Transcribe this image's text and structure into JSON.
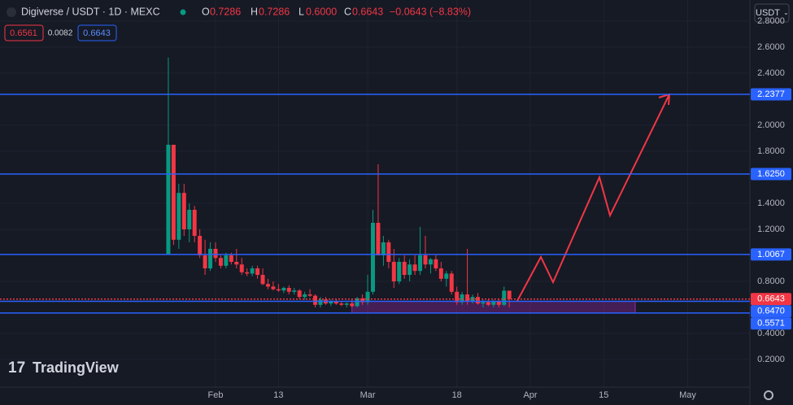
{
  "header": {
    "title": "Digiverse / USDT · 1D · MEXC",
    "o_label": "O",
    "open": "0.7286",
    "h_label": "H",
    "high": "0.7286",
    "l_label": "L",
    "low": "0.6000",
    "c_label": "C",
    "close": "0.6643",
    "change": "−0.0643 (−8.83%)",
    "sell": "0.6561",
    "spread": "0.0082",
    "buy": "0.6643",
    "currency": "USDT",
    "logo": "TradingView"
  },
  "chart_data": {
    "type": "candlestick",
    "up_color": "#089981",
    "down_color": "#f23645",
    "grid": true,
    "x": [
      "Jan 23",
      "Jan 24",
      "Jan 25",
      "Jan 26",
      "Jan 27",
      "Jan 28",
      "Jan 29",
      "Jan 30",
      "Jan 31",
      "Feb 1",
      "Feb 2",
      "Feb 3",
      "Feb 4",
      "Feb 5",
      "Feb 6",
      "Feb 7",
      "Feb 8",
      "Feb 9",
      "Feb 10",
      "Feb 11",
      "Feb 12",
      "Feb 13",
      "Feb 14",
      "Feb 15",
      "Feb 16",
      "Feb 17",
      "Feb 18",
      "Feb 19",
      "Feb 20",
      "Feb 21",
      "Feb 22",
      "Feb 23",
      "Feb 24",
      "Feb 25",
      "Feb 26",
      "Feb 27",
      "Feb 28",
      "Feb 29",
      "Mar 1",
      "Mar 2",
      "Mar 3",
      "Mar 4",
      "Mar 5",
      "Mar 6",
      "Mar 7",
      "Mar 8",
      "Mar 9",
      "Mar 10",
      "Mar 11",
      "Mar 12",
      "Mar 13",
      "Mar 14",
      "Mar 15",
      "Mar 16",
      "Mar 17",
      "Mar 18",
      "Mar 19",
      "Mar 20",
      "Mar 21",
      "Mar 22",
      "Mar 23",
      "Mar 24",
      "Mar 25",
      "Mar 26",
      "Mar 27",
      "Mar 28"
    ],
    "open": [
      1.01,
      1.85,
      1.12,
      1.48,
      1.2,
      1.35,
      1.15,
      1.0,
      0.9,
      1.05,
      0.98,
      0.92,
      1.0,
      0.95,
      0.93,
      0.87,
      0.86,
      0.9,
      0.85,
      0.78,
      0.76,
      0.74,
      0.73,
      0.75,
      0.72,
      0.73,
      0.68,
      0.7,
      0.69,
      0.62,
      0.66,
      0.63,
      0.65,
      0.63,
      0.62,
      0.63,
      0.61,
      0.67,
      0.64,
      0.72,
      1.25,
      1.0,
      1.1,
      0.95,
      0.8,
      0.95,
      0.85,
      0.93,
      0.88,
      1.0,
      0.93,
      0.97,
      0.9,
      0.82,
      0.86,
      0.72,
      0.64,
      0.7,
      0.65,
      0.68,
      0.63,
      0.64,
      0.62,
      0.65,
      0.62,
      0.7286
    ],
    "high": [
      2.52,
      1.85,
      1.55,
      1.55,
      1.4,
      1.38,
      1.2,
      1.12,
      1.1,
      1.1,
      1.0,
      1.02,
      1.02,
      1.05,
      0.98,
      0.9,
      0.92,
      0.92,
      0.9,
      0.82,
      0.8,
      0.78,
      0.76,
      0.77,
      0.75,
      0.74,
      0.72,
      0.74,
      0.7,
      0.68,
      0.68,
      0.66,
      0.66,
      0.65,
      0.64,
      0.66,
      0.68,
      0.7,
      0.85,
      1.35,
      1.7,
      1.15,
      1.12,
      1.05,
      0.98,
      1.0,
      0.97,
      1.0,
      1.22,
      1.15,
      0.98,
      1.0,
      0.95,
      0.88,
      0.88,
      0.76,
      0.72,
      1.05,
      0.7,
      0.71,
      0.66,
      0.66,
      0.66,
      0.67,
      0.76,
      0.7286
    ],
    "low": [
      1.01,
      1.08,
      1.05,
      1.15,
      1.1,
      1.1,
      0.98,
      0.85,
      0.88,
      0.95,
      0.9,
      0.9,
      0.93,
      0.9,
      0.85,
      0.84,
      0.84,
      0.82,
      0.77,
      0.74,
      0.73,
      0.72,
      0.71,
      0.7,
      0.7,
      0.66,
      0.66,
      0.68,
      0.6,
      0.6,
      0.62,
      0.61,
      0.62,
      0.61,
      0.6,
      0.6,
      0.6,
      0.62,
      0.62,
      0.7,
      1.0,
      0.92,
      0.9,
      0.75,
      0.78,
      0.82,
      0.8,
      0.85,
      0.85,
      0.9,
      0.86,
      0.88,
      0.8,
      0.76,
      0.7,
      0.62,
      0.62,
      0.62,
      0.63,
      0.62,
      0.6,
      0.61,
      0.6,
      0.6,
      0.61,
      0.6
    ],
    "close": [
      1.85,
      1.12,
      1.48,
      1.2,
      1.35,
      1.15,
      1.0,
      0.9,
      1.05,
      0.98,
      0.92,
      1.0,
      0.95,
      0.93,
      0.87,
      0.86,
      0.9,
      0.85,
      0.78,
      0.76,
      0.74,
      0.73,
      0.75,
      0.72,
      0.73,
      0.68,
      0.7,
      0.69,
      0.62,
      0.66,
      0.63,
      0.65,
      0.63,
      0.62,
      0.63,
      0.61,
      0.67,
      0.64,
      0.72,
      1.25,
      1.0,
      1.1,
      0.95,
      0.8,
      0.95,
      0.85,
      0.93,
      0.88,
      1.0,
      0.93,
      0.97,
      0.9,
      0.82,
      0.86,
      0.72,
      0.64,
      0.7,
      0.65,
      0.68,
      0.63,
      0.64,
      0.62,
      0.65,
      0.62,
      0.7286,
      0.6643
    ],
    "ylim": [
      -0.0125,
      2.9625
    ],
    "yticks": [
      {
        "value": 0.2,
        "label": "0.2000"
      },
      {
        "value": 0.4,
        "label": "0.4000"
      },
      {
        "value": 0.8,
        "label": "0.8000"
      },
      {
        "value": 1.2,
        "label": "1.2000"
      },
      {
        "value": 1.4,
        "label": "1.4000"
      },
      {
        "value": 1.8,
        "label": "1.8000"
      },
      {
        "value": 2.0,
        "label": "2.0000"
      },
      {
        "value": 2.4,
        "label": "2.4000"
      },
      {
        "value": 2.6,
        "label": "2.6000"
      },
      {
        "value": 2.8,
        "label": "2.8000"
      }
    ],
    "xticks": [
      {
        "value": "Feb 1",
        "label": "Feb"
      },
      {
        "value": "Feb 13",
        "label": "13"
      },
      {
        "value": "Mar 1",
        "label": "Mar"
      },
      {
        "value": "Mar 18",
        "label": "18"
      },
      {
        "value": "Apr 1",
        "label": "Apr"
      },
      {
        "value": "Apr 15",
        "label": "15"
      },
      {
        "value": "May 1",
        "label": "May"
      }
    ],
    "hlines": [
      {
        "value": 2.2377,
        "label": "2.2377",
        "color": "#2962ff"
      },
      {
        "value": 1.625,
        "label": "1.6250",
        "color": "#2962ff"
      },
      {
        "value": 1.0067,
        "label": "1.0067",
        "color": "#2962ff"
      },
      {
        "value": 0.6643,
        "label": "0.6643",
        "color": "#f23645"
      },
      {
        "value": 0.647,
        "label": "0.6470",
        "color": "#2962ff"
      },
      {
        "value": 0.5571,
        "label": "0.5571",
        "color": "#2962ff"
      }
    ],
    "zone": {
      "from": "Feb 27",
      "to": "Apr 21",
      "low": 0.5571,
      "high": 0.647,
      "color": "#9c27b0"
    }
  }
}
